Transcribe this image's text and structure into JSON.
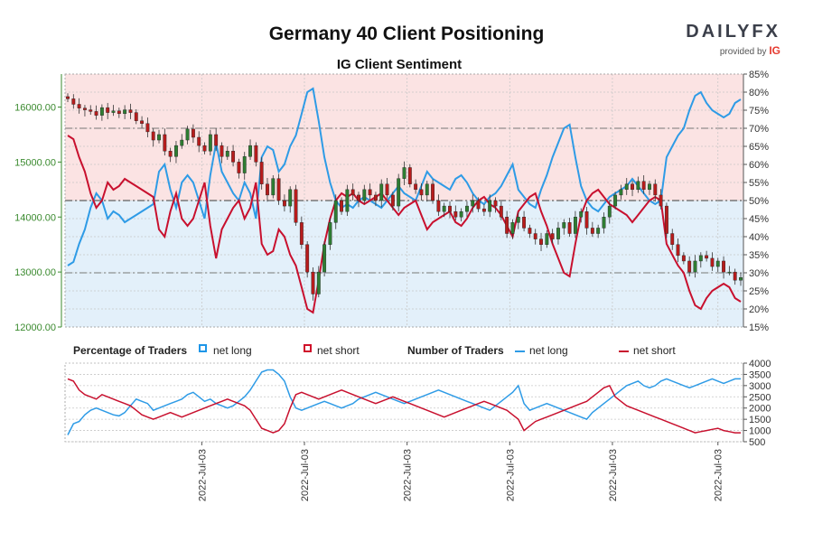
{
  "title": "Germany 40 Client Positioning",
  "subtitle": "IG Client Sentiment",
  "brand": {
    "name": "DAILYFX",
    "provided_by": "provided by",
    "ig": "IG"
  },
  "legend": {
    "percentage_title": "Percentage of Traders",
    "number_title": "Number of Traders",
    "net_long": "net long",
    "net_short": "net short"
  },
  "colors": {
    "net_long": "#2e9be6",
    "net_short": "#c8102e",
    "candle_up": "#2e7d32",
    "candle_down": "#b71c1c",
    "short_zone": "#fbe3e3",
    "long_zone": "#e3f0fa",
    "price_axis": "#3a8a2e"
  },
  "chart_data": [
    {
      "type": "candlestick",
      "title": "Germany 40 Client Positioning",
      "price_axis": {
        "ylim": [
          12000,
          16600
        ],
        "ticks": [
          "12000.00",
          "13000.00",
          "14000.00",
          "15000.00",
          "16000.00"
        ]
      },
      "percent_axis": {
        "ylim": [
          15,
          85
        ],
        "ticks": [
          "15%",
          "20%",
          "25%",
          "30%",
          "35%",
          "40%",
          "45%",
          "50%",
          "55%",
          "60%",
          "65%",
          "70%",
          "75%",
          "80%",
          "85%"
        ]
      },
      "x_tick_labels": [
        "2022-Jul-03",
        "2022-Jul-03",
        "2022-Jul-03",
        "2022-Jul-03",
        "2022-Jul-03",
        "2022-Jul-03"
      ],
      "x_tick_positions": [
        23.5,
        41.5,
        59.5,
        77.5,
        95.5,
        114
      ],
      "closes": [
        16150,
        16050,
        15980,
        15950,
        15920,
        15850,
        15990,
        15900,
        15930,
        15880,
        15950,
        15900,
        15750,
        15700,
        15550,
        15400,
        15500,
        15200,
        15100,
        15300,
        15400,
        15600,
        15450,
        15300,
        15200,
        15500,
        15300,
        15100,
        15200,
        15000,
        14800,
        15100,
        15300,
        15000,
        14600,
        14400,
        14700,
        14300,
        14200,
        14500,
        13900,
        13500,
        13000,
        12600,
        13000,
        13500,
        13900,
        14300,
        14100,
        14500,
        14400,
        14300,
        14500,
        14400,
        14300,
        14600,
        14400,
        14200,
        14700,
        14900,
        14600,
        14500,
        14400,
        14600,
        14300,
        14100,
        14200,
        14100,
        14000,
        14100,
        14200,
        14300,
        14150,
        14100,
        14300,
        14200,
        14000,
        13700,
        13900,
        14000,
        13800,
        13700,
        13600,
        13500,
        13700,
        13600,
        13800,
        13900,
        13700,
        14000,
        14100,
        13800,
        13700,
        13800,
        14000,
        14200,
        14400,
        14500,
        14600,
        14500,
        14650,
        14500,
        14600,
        14400,
        14200,
        13700,
        13500,
        13300,
        13200,
        13000,
        13200,
        13300,
        13250,
        13100,
        13200,
        13000,
        13000,
        12850,
        12900
      ],
      "pct_long": [
        32,
        33,
        38,
        42,
        48,
        52,
        50,
        45,
        47,
        46,
        44,
        45,
        46,
        47,
        48,
        49,
        58,
        60,
        53,
        48,
        55,
        57,
        55,
        50,
        45,
        57,
        66,
        58,
        55,
        52,
        50,
        55,
        52,
        45,
        62,
        65,
        64,
        58,
        60,
        65,
        68,
        74,
        80,
        81,
        72,
        62,
        55,
        50,
        48,
        49,
        48,
        50,
        51,
        50,
        49,
        48,
        50,
        52,
        54,
        52,
        51,
        50,
        54,
        58,
        56,
        55,
        54,
        53,
        56,
        57,
        55,
        52,
        50,
        49,
        51,
        52,
        54,
        57,
        60,
        53,
        51,
        49,
        48,
        53,
        57,
        62,
        66,
        70,
        71,
        62,
        54,
        50,
        48,
        47,
        49,
        51,
        52,
        53,
        54,
        56,
        54,
        52,
        50,
        49,
        50,
        62,
        65,
        68,
        70,
        75,
        79,
        80,
        77,
        75,
        74,
        73,
        74,
        77,
        78
      ],
      "pct_short": [
        68,
        67,
        62,
        58,
        52,
        48,
        50,
        55,
        53,
        54,
        56,
        55,
        54,
        53,
        52,
        51,
        42,
        40,
        47,
        52,
        45,
        43,
        45,
        50,
        55,
        43,
        34,
        42,
        45,
        48,
        50,
        45,
        48,
        55,
        38,
        35,
        36,
        42,
        40,
        35,
        32,
        26,
        20,
        19,
        28,
        38,
        45,
        50,
        52,
        51,
        52,
        50,
        49,
        50,
        51,
        52,
        50,
        48,
        46,
        48,
        49,
        50,
        46,
        42,
        44,
        45,
        46,
        47,
        44,
        43,
        45,
        48,
        50,
        51,
        49,
        48,
        46,
        43,
        40,
        47,
        49,
        51,
        52,
        47,
        43,
        38,
        34,
        30,
        29,
        38,
        46,
        50,
        52,
        53,
        51,
        49,
        48,
        47,
        46,
        44,
        46,
        48,
        50,
        51,
        50,
        38,
        35,
        32,
        30,
        25,
        21,
        20,
        23,
        25,
        26,
        27,
        26,
        23,
        22
      ]
    },
    {
      "type": "line",
      "title": "Number of Traders",
      "ylim": [
        500,
        4000
      ],
      "ticks": [
        "500",
        "1000",
        "1500",
        "2000",
        "2500",
        "3000",
        "3500",
        "4000"
      ],
      "series": [
        {
          "name": "net long",
          "values": [
            800,
            1300,
            1400,
            1700,
            1900,
            2000,
            1900,
            1800,
            1700,
            1650,
            1800,
            2100,
            2400,
            2300,
            2200,
            1900,
            2000,
            2100,
            2200,
            2300,
            2400,
            2600,
            2700,
            2500,
            2300,
            2400,
            2200,
            2100,
            2000,
            2100,
            2300,
            2500,
            2800,
            3200,
            3600,
            3700,
            3700,
            3500,
            3200,
            2500,
            2000,
            1900,
            2000,
            2100,
            2200,
            2300,
            2200,
            2100,
            2000,
            2100,
            2200,
            2400,
            2500,
            2600,
            2700,
            2600,
            2500,
            2400,
            2300,
            2200,
            2300,
            2400,
            2500,
            2600,
            2700,
            2800,
            2700,
            2600,
            2500,
            2400,
            2300,
            2200,
            2100,
            2000,
            1900,
            2100,
            2300,
            2500,
            2700,
            3000,
            2200,
            1900,
            2000,
            2100,
            2200,
            2100,
            2000,
            1900,
            1800,
            1700,
            1600,
            1500,
            1800,
            2000,
            2200,
            2400,
            2600,
            2800,
            3000,
            3100,
            3200,
            3000,
            2900,
            3000,
            3200,
            3300,
            3200,
            3100,
            3000,
            2900,
            3000,
            3100,
            3200,
            3300,
            3200,
            3100,
            3200,
            3300,
            3300
          ]
        },
        {
          "name": "net short",
          "values": [
            3300,
            3200,
            2800,
            2600,
            2500,
            2400,
            2600,
            2500,
            2400,
            2300,
            2200,
            2100,
            1900,
            1700,
            1600,
            1500,
            1600,
            1700,
            1800,
            1700,
            1600,
            1700,
            1800,
            1900,
            2000,
            2100,
            2200,
            2300,
            2400,
            2300,
            2200,
            2100,
            1900,
            1500,
            1100,
            1000,
            900,
            1000,
            1300,
            2000,
            2600,
            2700,
            2600,
            2500,
            2400,
            2500,
            2600,
            2700,
            2800,
            2700,
            2600,
            2500,
            2400,
            2300,
            2200,
            2300,
            2400,
            2500,
            2400,
            2300,
            2200,
            2100,
            2000,
            1900,
            1800,
            1700,
            1600,
            1700,
            1800,
            1900,
            2000,
            2100,
            2200,
            2300,
            2200,
            2100,
            2000,
            1900,
            1700,
            1500,
            1000,
            1200,
            1400,
            1500,
            1600,
            1700,
            1800,
            1900,
            2000,
            2100,
            2200,
            2300,
            2500,
            2700,
            2900,
            3000,
            2500,
            2300,
            2100,
            2000,
            1900,
            1800,
            1700,
            1600,
            1500,
            1400,
            1300,
            1200,
            1100,
            1000,
            900,
            950,
            1000,
            1050,
            1100,
            1000,
            950,
            900,
            900
          ]
        }
      ]
    }
  ]
}
